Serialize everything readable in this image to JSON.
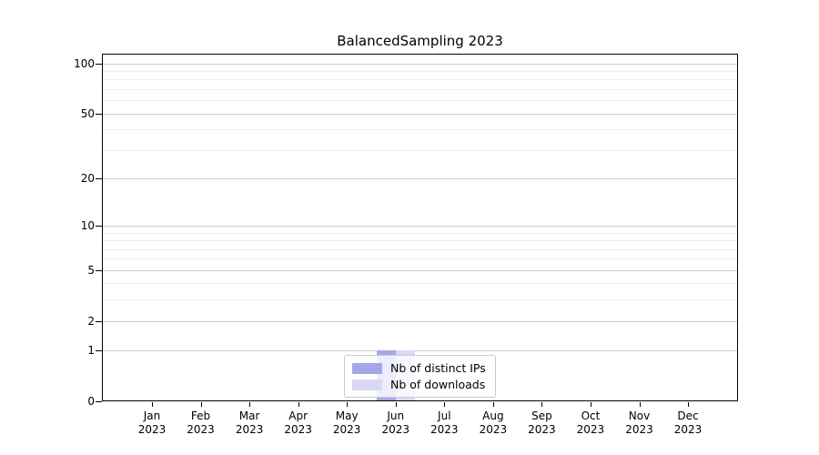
{
  "chart_data": {
    "type": "bar",
    "title": "BalancedSampling 2023",
    "categories": [
      "Jan 2023",
      "Feb 2023",
      "Mar 2023",
      "Apr 2023",
      "May 2023",
      "Jun 2023",
      "Jul 2023",
      "Aug 2023",
      "Sep 2023",
      "Oct 2023",
      "Nov 2023",
      "Dec 2023"
    ],
    "x_tick_line1": [
      "Jan",
      "Feb",
      "Mar",
      "Apr",
      "May",
      "Jun",
      "Jul",
      "Aug",
      "Sep",
      "Oct",
      "Nov",
      "Dec"
    ],
    "x_tick_line2": "2023",
    "series": [
      {
        "name": "Nb of distinct IPs",
        "color": "#a6a6ea",
        "values": [
          0,
          0,
          0,
          0,
          0,
          1,
          0,
          0,
          0,
          0,
          0,
          0
        ]
      },
      {
        "name": "Nb of downloads",
        "color": "#d8d8f6",
        "values": [
          0,
          0,
          0,
          0,
          0,
          1,
          0,
          0,
          0,
          0,
          0,
          0
        ]
      }
    ],
    "xlabel": "",
    "ylabel": "",
    "y_scale": "log1p",
    "ylim": [
      0,
      100
    ],
    "y_major_ticks": [
      0,
      1,
      2,
      5,
      10,
      20,
      50,
      100
    ],
    "y_minor_gridlines": [
      3,
      4,
      6,
      7,
      8,
      9,
      30,
      40,
      60,
      70,
      80,
      90
    ],
    "grid": "horizontal",
    "legend": {
      "position": "bottom-center",
      "items": [
        "Nb of distinct IPs",
        "Nb of downloads"
      ]
    }
  },
  "colors": {
    "major_grid": "#cccccc",
    "minor_grid": "#ededed",
    "axis": "#000000",
    "text": "#000000",
    "legend_border": "#cccccc"
  }
}
